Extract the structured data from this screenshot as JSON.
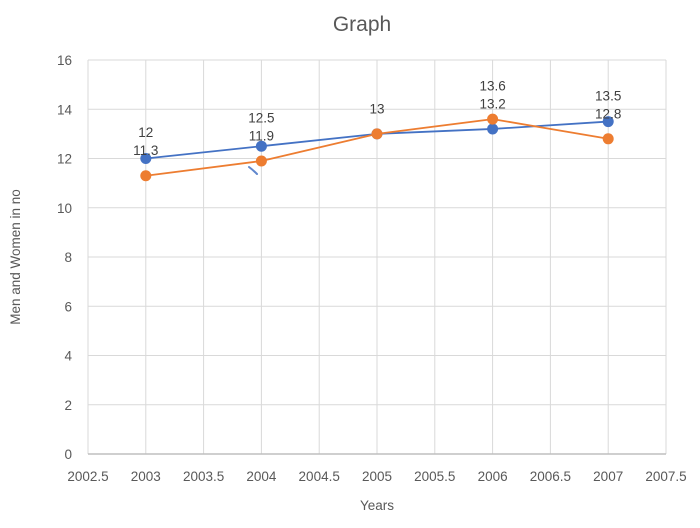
{
  "chart_data": {
    "type": "line",
    "title": "Graph",
    "xlabel": "Years",
    "ylabel": "Men and Women in no",
    "xlim": [
      2002.5,
      2007.5
    ],
    "ylim": [
      0,
      16
    ],
    "x_tick_values": [
      2002.5,
      2003,
      2003.5,
      2004,
      2004.5,
      2005,
      2005.5,
      2006,
      2006.5,
      2007,
      2007.5
    ],
    "x_tick_labels": [
      "2002.5",
      "2003",
      "2003.5",
      "2004",
      "2004.5",
      "2005",
      "2005.5",
      "2006",
      "2006.5",
      "2007",
      "2007.5"
    ],
    "y_tick_values": [
      0,
      2,
      4,
      6,
      8,
      10,
      12,
      14,
      16
    ],
    "y_tick_labels": [
      "0",
      "2",
      "4",
      "6",
      "8",
      "10",
      "12",
      "14",
      "16"
    ],
    "x": [
      2003,
      2004,
      2005,
      2006,
      2007
    ],
    "series": [
      {
        "id": "series-1-blue",
        "color": "#4472C4",
        "values": [
          12,
          12.5,
          13,
          13.2,
          13.5
        ]
      },
      {
        "id": "series-2-orange",
        "color": "#ED7D31",
        "values": [
          11.3,
          11.9,
          13,
          13.6,
          12.8
        ]
      }
    ],
    "data_labels": [
      [
        "12",
        "11.3"
      ],
      [
        "12.5",
        "11.9"
      ],
      [
        "13"
      ],
      [
        "13.6",
        "13.2"
      ],
      [
        "13.5",
        "12.8"
      ]
    ],
    "grid": true,
    "legend": "none",
    "colors": {
      "background": "#FFFFFF",
      "gridline": "#D9D9D9",
      "axis_line": "#BFBFBF",
      "title_text": "#595959",
      "axis_text": "#595959",
      "data_label_text": "#404040"
    }
  }
}
